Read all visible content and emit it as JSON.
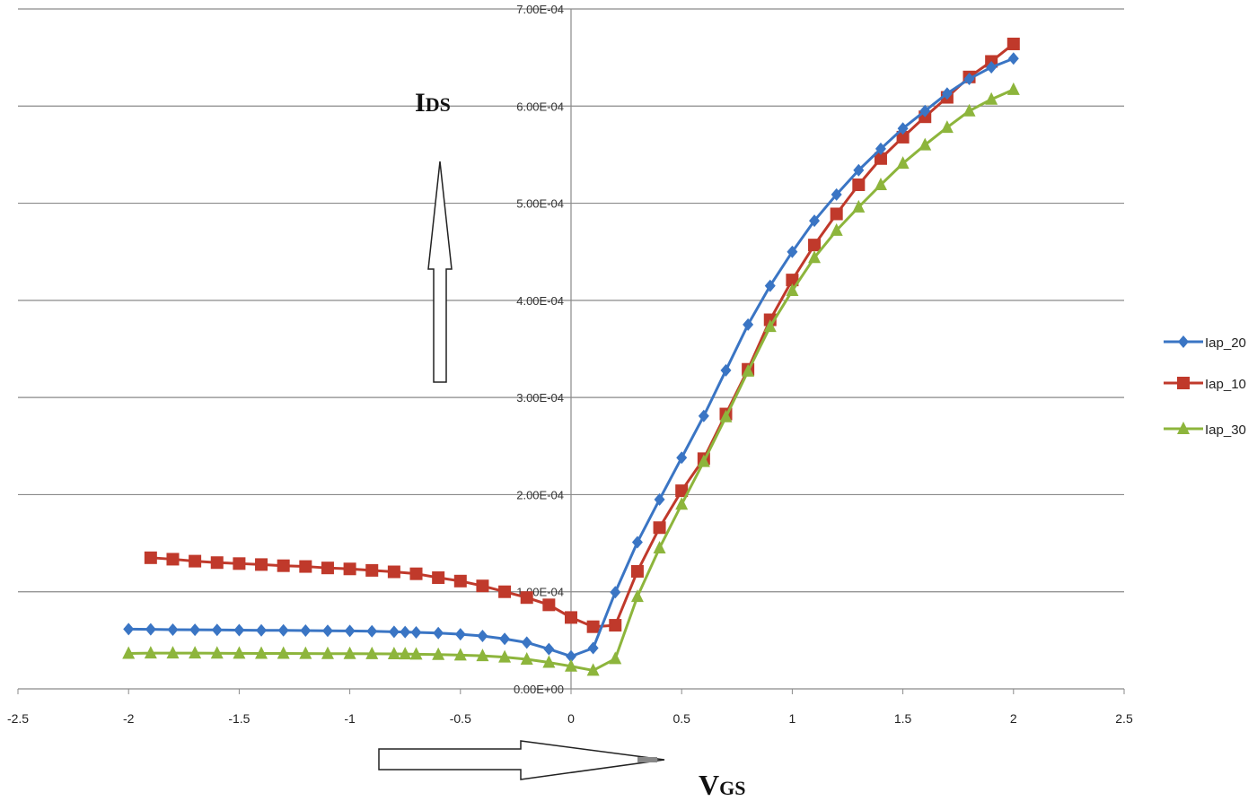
{
  "chart_data": {
    "type": "line",
    "title": "",
    "xlabel_main": "V",
    "xlabel_sub": "GS",
    "ylabel_main": "I",
    "ylabel_sub": "DS",
    "xlim": [
      -2.5,
      2.5
    ],
    "ylim": [
      0,
      0.0007
    ],
    "x_ticks": [
      -2.5,
      -2,
      -1.5,
      -1,
      -0.5,
      0,
      0.5,
      1,
      1.5,
      2,
      2.5
    ],
    "x_tick_labels": [
      "-2.5",
      "-2",
      "-1.5",
      "-1",
      "-0.5",
      "0",
      "0.5",
      "1",
      "1.5",
      "2",
      "2.5"
    ],
    "y_ticks": [
      0,
      0.0001,
      0.0002,
      0.0003,
      0.0004,
      0.0005,
      0.0006,
      0.0007
    ],
    "y_tick_labels": [
      "0.00E+00",
      "1.00E-04",
      "2.00E-04",
      "3.00E-04",
      "4.00E-04",
      "5.00E-04",
      "6.00E-04",
      "7.00E-04"
    ],
    "grid": true,
    "legend_position": "right",
    "series": [
      {
        "name": "Iap_20",
        "color": "#3a75c4",
        "marker": "diamond",
        "x": [
          -2,
          -1.9,
          -1.8,
          -1.7,
          -1.6,
          -1.5,
          -1.4,
          -1.3,
          -1.2,
          -1.1,
          -1,
          -0.9,
          -0.8,
          -0.75,
          -0.7,
          -0.6,
          -0.5,
          -0.4,
          -0.3,
          -0.2,
          -0.1,
          0,
          0.1,
          0.2,
          0.3,
          0.4,
          0.5,
          0.6,
          0.7,
          0.8,
          0.9,
          1,
          1.1,
          1.2,
          1.3,
          1.4,
          1.5,
          1.6,
          1.7,
          1.8,
          1.9,
          2
        ],
        "y": [
          6.15e-05,
          6.13e-05,
          6.1e-05,
          6.08e-05,
          6.07e-05,
          6.05e-05,
          6.03e-05,
          6.02e-05,
          6e-05,
          5.98e-05,
          5.97e-05,
          5.93e-05,
          5.88e-05,
          5.85e-05,
          5.82e-05,
          5.75e-05,
          5.62e-05,
          5.45e-05,
          5.15e-05,
          4.77e-05,
          4.1e-05,
          3.35e-05,
          4.2e-05,
          9.95e-05,
          0.000151,
          0.000195,
          0.000238,
          0.000281,
          0.000328,
          0.000375,
          0.000415,
          0.00045,
          0.000482,
          0.000509,
          0.000534,
          0.000556,
          0.000577,
          0.000595,
          0.000613,
          0.000628,
          0.00064,
          0.000649
        ]
      },
      {
        "name": "Iap_10",
        "color": "#c0392b",
        "marker": "square",
        "x": [
          -1.9,
          -1.8,
          -1.7,
          -1.6,
          -1.5,
          -1.4,
          -1.3,
          -1.2,
          -1.1,
          -1,
          -0.9,
          -0.8,
          -0.7,
          -0.6,
          -0.5,
          -0.4,
          -0.3,
          -0.2,
          -0.1,
          0,
          0.1,
          0.2,
          0.3,
          0.4,
          0.5,
          0.6,
          0.7,
          0.8,
          0.9,
          1,
          1.1,
          1.2,
          1.3,
          1.4,
          1.5,
          1.6,
          1.7,
          1.8,
          1.9,
          2
        ],
        "y": [
          0.000135,
          0.0001335,
          0.0001315,
          0.00013,
          0.000129,
          0.000128,
          0.0001268,
          0.000126,
          0.0001245,
          0.0001235,
          0.000122,
          0.0001205,
          0.0001185,
          0.0001145,
          0.000111,
          0.000106,
          0.0001,
          9.4e-05,
          8.65e-05,
          7.35e-05,
          6.4e-05,
          6.55e-05,
          0.000121,
          0.000166,
          0.000204,
          0.000237,
          0.000283,
          0.000329,
          0.00038,
          0.000421,
          0.000457,
          0.000489,
          0.000519,
          0.000546,
          0.000568,
          0.000589,
          0.000609,
          0.00063,
          0.000646,
          0.000664
        ]
      },
      {
        "name": "Iap_30",
        "color": "#8db53c",
        "marker": "triangle",
        "x": [
          -2,
          -1.9,
          -1.8,
          -1.7,
          -1.6,
          -1.5,
          -1.4,
          -1.3,
          -1.2,
          -1.1,
          -1,
          -0.9,
          -0.8,
          -0.75,
          -0.7,
          -0.6,
          -0.5,
          -0.4,
          -0.3,
          -0.2,
          -0.1,
          0,
          0.1,
          0.2,
          0.3,
          0.4,
          0.5,
          0.6,
          0.7,
          0.8,
          0.9,
          1,
          1.1,
          1.2,
          1.3,
          1.4,
          1.5,
          1.6,
          1.7,
          1.8,
          1.9,
          2
        ],
        "y": [
          3.65e-05,
          3.68e-05,
          3.68e-05,
          3.68e-05,
          3.67e-05,
          3.66e-05,
          3.65e-05,
          3.65e-05,
          3.64e-05,
          3.63e-05,
          3.62e-05,
          3.61e-05,
          3.6e-05,
          3.59e-05,
          3.57e-05,
          3.53e-05,
          3.48e-05,
          3.4e-05,
          3.27e-05,
          3.05e-05,
          2.72e-05,
          2.33e-05,
          1.9e-05,
          3.1e-05,
          9.5e-05,
          0.000145,
          0.00019,
          0.000234,
          0.00028,
          0.000327,
          0.000373,
          0.00041,
          0.000444,
          0.000472,
          0.000496,
          0.000519,
          0.000541,
          0.00056,
          0.000578,
          0.000595,
          0.000607,
          0.000617
        ]
      }
    ]
  }
}
